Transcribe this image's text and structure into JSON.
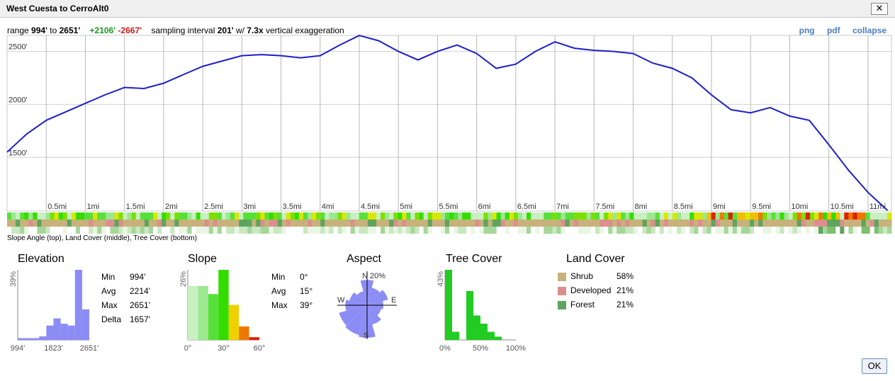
{
  "window": {
    "title": "West Cuesta to CerroAlt0",
    "close_label": "✕"
  },
  "summary": {
    "range_label": "range",
    "min": "994'",
    "to_label": "to",
    "max": "2651'",
    "gain": "+2106'",
    "loss": "-2667'",
    "sampling_label": "sampling interval",
    "interval": "201'",
    "with_label": "w/",
    "exaggeration": "7.3x",
    "exaggeration_label": "vertical exaggeration"
  },
  "links": {
    "png": "png",
    "pdf": "pdf",
    "collapse": "collapse"
  },
  "chart_data": [
    {
      "type": "line",
      "series": [
        {
          "x": [
            0,
            0.25,
            0.5,
            0.75,
            1,
            1.25,
            1.5,
            1.75,
            2,
            2.25,
            2.5,
            2.75,
            3,
            3.25,
            3.5,
            3.75,
            4,
            4.25,
            4.5,
            4.75,
            5,
            5.25,
            5.5,
            5.75,
            6,
            6.25,
            6.5,
            6.75,
            7,
            7.25,
            7.5,
            7.75,
            8,
            8.25,
            8.5,
            8.75,
            9,
            9.25,
            9.5,
            9.75,
            10,
            10.25,
            10.5,
            10.75,
            11,
            11.25
          ],
          "y": [
            1550,
            1720,
            1850,
            1930,
            2010,
            2090,
            2160,
            2150,
            2200,
            2280,
            2360,
            2410,
            2460,
            2470,
            2460,
            2440,
            2460,
            2560,
            2650,
            2600,
            2500,
            2420,
            2500,
            2560,
            2480,
            2340,
            2380,
            2500,
            2590,
            2530,
            2510,
            2500,
            2480,
            2390,
            2340,
            2250,
            2090,
            1950,
            1920,
            1970,
            1890,
            1850,
            1620,
            1380,
            1170,
            1000
          ]
        }
      ],
      "xlabel": "",
      "ylabel": "",
      "x_ticks": [
        "0.5mi",
        "1mi",
        "1.5mi",
        "2mi",
        "2.5mi",
        "3mi",
        "3.5mi",
        "4mi",
        "4.5mi",
        "5mi",
        "5.5mi",
        "6mi",
        "6.5mi",
        "7mi",
        "7.5mi",
        "8mi",
        "8.5mi",
        "9mi",
        "9.5mi",
        "10mi",
        "10.5mi",
        "11mi"
      ],
      "y_ticks": [
        "1500'",
        "2000'",
        "2500'"
      ],
      "ylim": [
        994,
        2651
      ],
      "xlim": [
        0,
        11.3
      ],
      "grid": true,
      "line_color": "#1f1fc8"
    },
    {
      "type": "bar",
      "title": "Elevation",
      "values": [
        1,
        1,
        1,
        2,
        8,
        12,
        9,
        8,
        39,
        17
      ],
      "max_label": "39%",
      "x_ticks": [
        "994'",
        "1823'",
        "2651'"
      ],
      "bar_color": "#8c8cf5"
    },
    {
      "type": "bar",
      "title": "Slope",
      "values": [
        20,
        20,
        17,
        26,
        13,
        5,
        1
      ],
      "colors": [
        "#c8f0c0",
        "#9be890",
        "#58e03a",
        "#33dd00",
        "#f0d000",
        "#f07800",
        "#e02000"
      ],
      "max_label": "26%",
      "x_ticks": [
        "0°",
        "30°",
        "60°"
      ]
    },
    {
      "type": "pie",
      "title": "Aspect",
      "ring_label": "20%",
      "directions": [
        "N",
        "E",
        "S",
        "W"
      ],
      "values": [
        14,
        10,
        12,
        9,
        8,
        11,
        18,
        17,
        16,
        12,
        10,
        8
      ],
      "fill": "#8c8cf5"
    },
    {
      "type": "bar",
      "title": "Tree Cover",
      "values": [
        43,
        5,
        0,
        30,
        15,
        10,
        5,
        2,
        0,
        0
      ],
      "max_label": "43%",
      "x_ticks": [
        "0%",
        "50%",
        "100%"
      ],
      "bar_color": "#22cc22"
    },
    {
      "type": "table",
      "title": "Land Cover",
      "items": [
        {
          "label": "Shrub",
          "pct": "58%",
          "color": "#c9b17c"
        },
        {
          "label": "Developed",
          "pct": "21%",
          "color": "#dd8e8e"
        },
        {
          "label": "Forest",
          "pct": "21%",
          "color": "#5ea45e"
        }
      ]
    }
  ],
  "bands": {
    "label": "Slope Angle (top), Land Cover (middle), Tree Cover (bottom)"
  },
  "elevation_stats": {
    "min_label": "Min",
    "min": "994'",
    "avg_label": "Avg",
    "avg": "2214'",
    "max_label": "Max",
    "max": "2651'",
    "delta_label": "Delta",
    "delta": "1657'"
  },
  "slope_stats": {
    "min_label": "Min",
    "min": "0°",
    "avg_label": "Avg",
    "avg": "15°",
    "max_label": "Max",
    "max": "39°"
  },
  "ok_label": "OK"
}
